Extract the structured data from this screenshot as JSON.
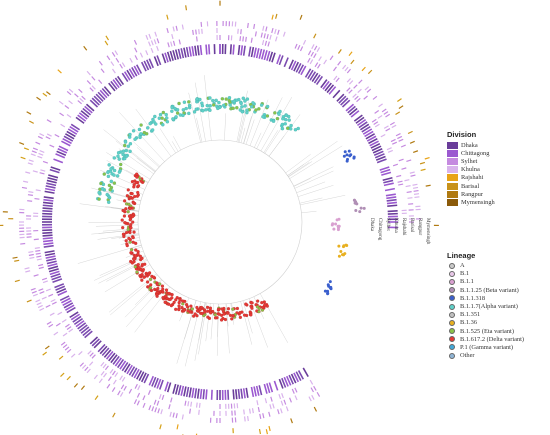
{
  "division_legend": {
    "title": "Division",
    "items": [
      {
        "label": "Dhaka",
        "color": "#6a3d9a"
      },
      {
        "label": "Chittagong",
        "color": "#9b59d0"
      },
      {
        "label": "Sylhet",
        "color": "#c58ae0"
      },
      {
        "label": "Khulna",
        "color": "#d9b3ec"
      },
      {
        "label": "Rajshahi",
        "color": "#e8a317"
      },
      {
        "label": "Barisal",
        "color": "#c8921a"
      },
      {
        "label": "Rangpur",
        "color": "#b07a12"
      },
      {
        "label": "Mymensingh",
        "color": "#8b5a0a"
      }
    ]
  },
  "lineage_legend": {
    "title": "Lineage",
    "items": [
      {
        "label": "A",
        "color": "#c9c9c9"
      },
      {
        "label": "B.1",
        "color": "#e8c8e8"
      },
      {
        "label": "B.1.1",
        "color": "#d9a0d0"
      },
      {
        "label": "B.1.1.25  (Beta variant)",
        "color": "#b08fb5"
      },
      {
        "label": "B.1.1.318",
        "color": "#3a5fcd"
      },
      {
        "label": "B.1.1.7(Alpha variant)",
        "color": "#5fd0c8"
      },
      {
        "label": "B.1.351",
        "color": "#c0c0c0"
      },
      {
        "label": "B.1.36",
        "color": "#e8b020"
      },
      {
        "label": "B.1.525 (Eta variant)",
        "color": "#8bc34a"
      },
      {
        "label": "B.1.617.2 (Delta variant)",
        "color": "#e53935"
      },
      {
        "label": "P.1 (Gamma variant)",
        "color": "#43a8d8"
      },
      {
        "label": "Other",
        "color": "#90b4d4"
      }
    ]
  },
  "ring_labels": [
    "Dhaka",
    "Chittagong",
    "Sylhet",
    "Khulna",
    "Rajshahi",
    "Barisal",
    "Rangpur",
    "Mymensingh"
  ]
}
